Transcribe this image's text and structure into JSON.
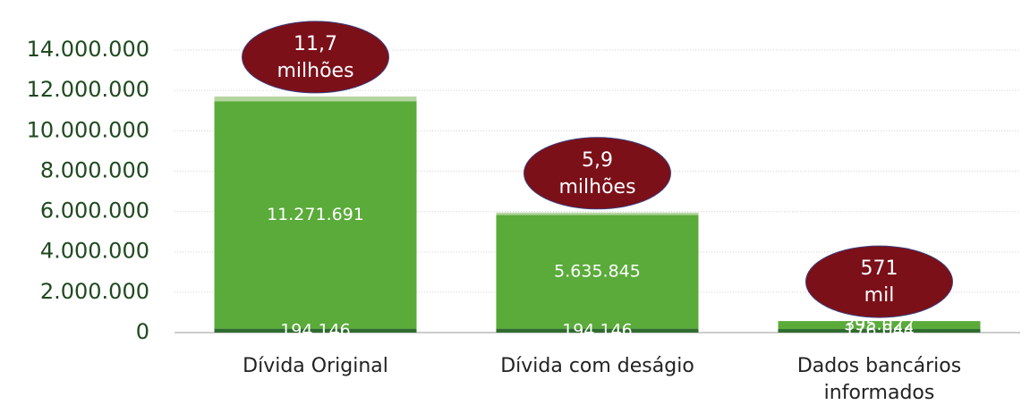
{
  "chart_data": {
    "type": "stacked_bar",
    "categories": [
      "Dívida Original",
      "Dívida com deságio",
      [
        "Dados bancários",
        "informados"
      ]
    ],
    "series": [
      {
        "color": "#2e6b2e",
        "values": [
          194146,
          194146,
          176044
        ],
        "value_labels": [
          "194.146",
          "194.146",
          "176.044"
        ]
      },
      {
        "color": "#5aab3a",
        "values": [
          11271691,
          5635845,
          395022
        ],
        "value_labels": [
          "11.271.691",
          "5.635.845",
          "395.022"
        ]
      },
      {
        "color": "#b5d5a0",
        "values": [
          234163,
          117081,
          0
        ]
      }
    ],
    "annotations": [
      [
        "11,7",
        "milhões"
      ],
      [
        "5,9",
        "milhões"
      ],
      [
        "571",
        "mil"
      ]
    ],
    "ylim": [
      0,
      14000000
    ],
    "yticks": [
      0,
      {
        "value": 2000000,
        "label": "2.000.000"
      },
      {
        "value": 4000000,
        "label": "4.000.000"
      },
      {
        "value": 6000000,
        "label": "6.000.000"
      },
      {
        "value": 8000000,
        "label": "8.000.000"
      },
      {
        "value": 10000000,
        "label": "10.000.000"
      },
      {
        "value": 12000000,
        "label": "12.000.000"
      },
      {
        "value": 14000000,
        "label": "14.000.000"
      }
    ],
    "grid": true
  }
}
